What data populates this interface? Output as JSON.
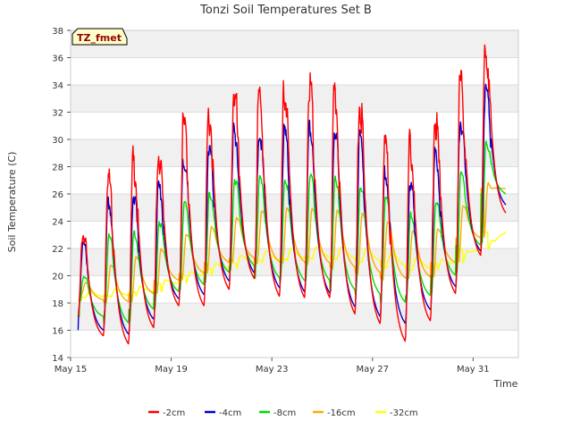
{
  "chart_data": {
    "type": "line",
    "title": "Tonzi Soil Temperatures Set B",
    "xlabel": "Time",
    "ylabel": "Soil Temperature (C)",
    "site_label": "TZ_fmet",
    "x_range_days": [
      15.0,
      32.8
    ],
    "ylim": [
      14,
      38
    ],
    "y_ticks": [
      14,
      16,
      18,
      20,
      22,
      24,
      26,
      28,
      30,
      32,
      34,
      36,
      38
    ],
    "x_ticks": [
      {
        "day": 15,
        "label": "May 15"
      },
      {
        "day": 19,
        "label": "May 19"
      },
      {
        "day": 23,
        "label": "May 23"
      },
      {
        "day": 27,
        "label": "May 27"
      },
      {
        "day": 31,
        "label": "May 31"
      }
    ],
    "grid": "horizontal-bands",
    "legend": "bottom",
    "x_start_day": 15.3,
    "series": [
      {
        "name": "-2cm",
        "color": "#ff0000",
        "daily_min": [
          17.0,
          15.6,
          15.0,
          16.2,
          17.8,
          17.8,
          19.0,
          19.8,
          18.5,
          18.4,
          18.4,
          17.2,
          16.5,
          15.2,
          16.7,
          18.7,
          21.5
        ],
        "daily_max": [
          23.3,
          28.0,
          29.0,
          29.6,
          31.8,
          32.5,
          34.0,
          33.8,
          34.3,
          34.7,
          33.8,
          33.2,
          30.2,
          30.2,
          32.2,
          35.0,
          37.4
        ],
        "end": 24.6
      },
      {
        "name": "-4cm",
        "color": "#0000cc",
        "daily_min": [
          17.4,
          16.0,
          15.7,
          16.8,
          18.3,
          18.6,
          19.6,
          20.2,
          19.1,
          18.8,
          18.7,
          17.7,
          17.0,
          16.5,
          17.5,
          19.2,
          21.8
        ],
        "daily_max": [
          22.5,
          25.8,
          26.2,
          27.0,
          29.0,
          29.8,
          31.0,
          30.8,
          31.0,
          31.6,
          31.0,
          30.5,
          28.0,
          27.2,
          29.2,
          31.8,
          34.2
        ],
        "end": 25.2
      },
      {
        "name": "-8cm",
        "color": "#00dd00",
        "daily_min": [
          17.9,
          17.0,
          16.5,
          17.5,
          18.8,
          19.3,
          20.2,
          20.7,
          19.8,
          19.6,
          19.6,
          18.9,
          18.6,
          18.0,
          18.5,
          20.0,
          22.2
        ],
        "daily_max": [
          20.0,
          23.0,
          23.3,
          24.1,
          25.5,
          26.2,
          27.2,
          27.3,
          27.2,
          27.6,
          27.2,
          26.8,
          25.8,
          24.6,
          25.6,
          27.7,
          30.0
        ],
        "end": 26.0
      },
      {
        "name": "-16cm",
        "color": "#ffaa00",
        "daily_min": [
          18.6,
          18.2,
          18.0,
          18.6,
          19.6,
          20.1,
          20.9,
          21.2,
          20.9,
          20.9,
          20.8,
          20.5,
          20.1,
          19.7,
          19.8,
          20.9,
          22.7
        ],
        "daily_max": [
          19.5,
          20.8,
          21.4,
          22.0,
          23.1,
          23.6,
          24.3,
          24.8,
          25.0,
          25.0,
          24.8,
          24.6,
          24.0,
          23.3,
          23.5,
          25.2,
          26.8
        ],
        "end": 26.4
      },
      {
        "name": "-32cm",
        "color": "#ffff00",
        "daily_min": [
          18.4,
          18.4,
          18.5,
          18.8,
          19.4,
          20.0,
          20.5,
          20.9,
          21.1,
          21.2,
          21.3,
          21.2,
          21.0,
          20.6,
          20.4,
          20.9,
          21.9
        ],
        "daily_max": [
          18.9,
          19.0,
          19.2,
          19.7,
          20.3,
          20.9,
          21.5,
          21.8,
          22.0,
          22.1,
          22.1,
          22.0,
          21.8,
          21.4,
          21.2,
          21.8,
          22.6
        ],
        "end": 23.2
      }
    ]
  }
}
